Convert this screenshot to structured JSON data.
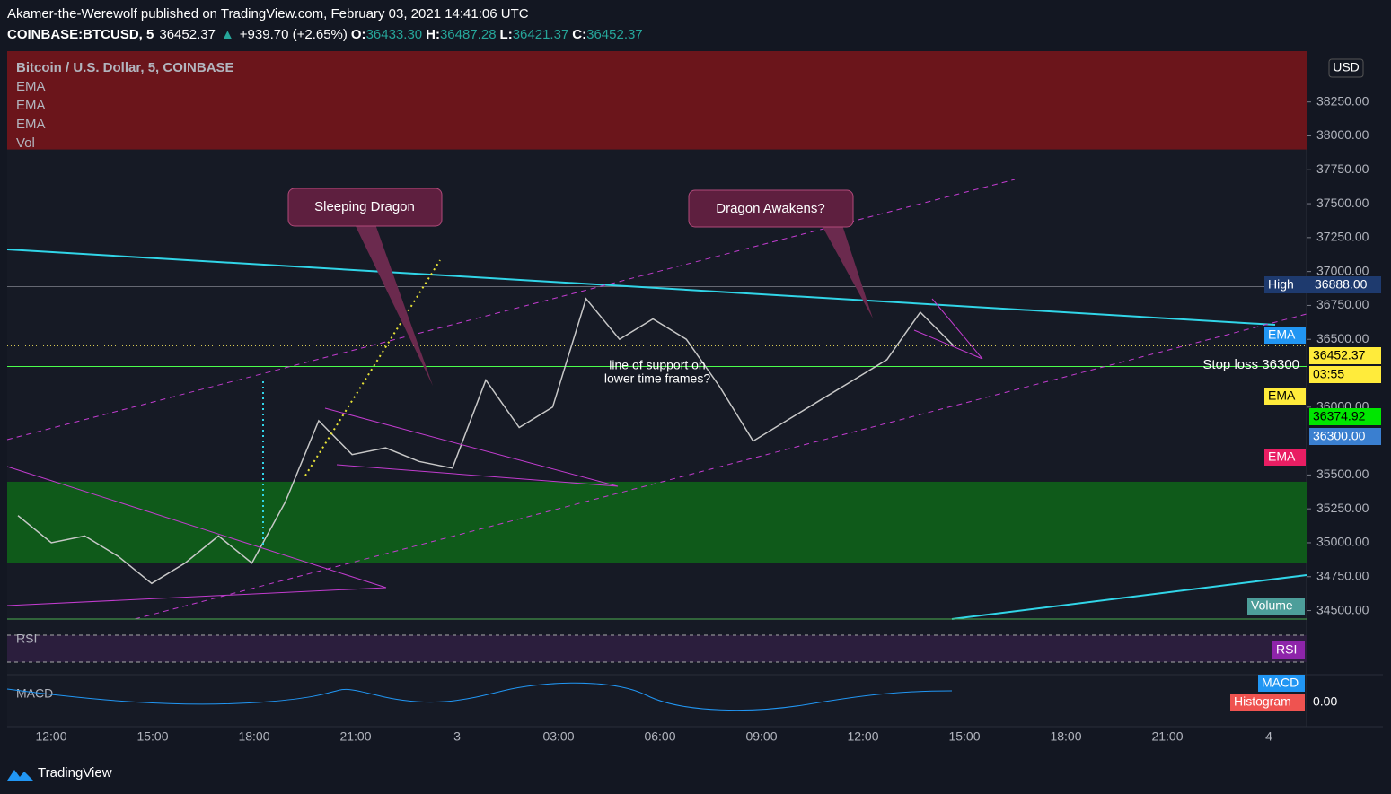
{
  "header": {
    "publisher": "Akamer-the-Werewolf published on TradingView.com, February 03, 2021 14:41:06 UTC",
    "symbol": "COINBASE:BTCUSD, 5",
    "last": "36452.37",
    "arrow": "▲",
    "change": "+939.70 (+2.65%)",
    "ohlc": [
      {
        "k": "O:",
        "v": "36433.30"
      },
      {
        "k": "H:",
        "v": "36487.28"
      },
      {
        "k": "L:",
        "v": "36421.37"
      },
      {
        "k": "C:",
        "v": "36452.37"
      }
    ]
  },
  "legend": [
    "Bitcoin / U.S. Dollar, 5, COINBASE",
    "EMA",
    "EMA",
    "EMA",
    "Vol"
  ],
  "currency": "USD",
  "price_axis": {
    "ylim": [
      34437.5,
      38625
    ],
    "yticks": [
      {
        "value": 38250,
        "label": "38250.00"
      },
      {
        "value": 38000,
        "label": "38000.00"
      },
      {
        "value": 37750,
        "label": "37750.00"
      },
      {
        "value": 37500,
        "label": "37500.00"
      },
      {
        "value": 37250,
        "label": "37250.00"
      },
      {
        "value": 37000,
        "label": "37000.00"
      },
      {
        "value": 36750,
        "label": "36750.00"
      },
      {
        "value": 36500,
        "label": "36500.00"
      },
      {
        "value": 36000,
        "label": "36000.00"
      },
      {
        "value": 35500,
        "label": "35500.00"
      },
      {
        "value": 35250,
        "label": "35250.00"
      },
      {
        "value": 35000,
        "label": "35000.00"
      },
      {
        "value": 34750,
        "label": "34750.00"
      },
      {
        "value": 34500,
        "label": "34500.00"
      }
    ]
  },
  "time_axis": [
    "12:00",
    "15:00",
    "18:00",
    "21:00",
    "3",
    "03:00",
    "06:00",
    "09:00",
    "12:00",
    "15:00",
    "18:00",
    "21:00",
    "4"
  ],
  "zones": {
    "supply": {
      "from": 37900,
      "color": "#6b151b"
    },
    "demand": {
      "from": 34850,
      "to": 35450,
      "color": "#0f5a1a"
    }
  },
  "price_line": {
    "color": "#c8c8c8",
    "values": [
      35200,
      35000,
      35050,
      34900,
      34700,
      34850,
      35050,
      34850,
      35300,
      35900,
      35650,
      35700,
      35600,
      35550,
      36200,
      35850,
      36000,
      36800,
      36500,
      36650,
      36500,
      36150,
      35750,
      35900,
      36050,
      36200,
      36350,
      36700,
      36452.37
    ]
  },
  "levels": {
    "last": 36452.37,
    "stop": 36300,
    "high": 36888
  },
  "right_labels": [
    {
      "text": "High",
      "value": "36888.00"
    },
    {
      "text": "EMA"
    },
    {
      "text": "36452.37"
    },
    {
      "text": "03:55"
    },
    {
      "text": "EMA"
    },
    {
      "text": "36374.92"
    },
    {
      "text": "36300.00"
    },
    {
      "text": "EMA"
    },
    {
      "text": "Volume"
    },
    {
      "text": "RSI"
    },
    {
      "text": "MACD"
    },
    {
      "text": "Histogram"
    },
    {
      "text": "0.00"
    }
  ],
  "annotations": [
    "Sleeping Dragon",
    "Dragon Awakens?",
    "line of support on",
    "lower time frames?",
    "Stop loss 36300"
  ],
  "panes": {
    "rsi": "RSI",
    "macd": "MACD"
  },
  "brand": "TradingView"
}
